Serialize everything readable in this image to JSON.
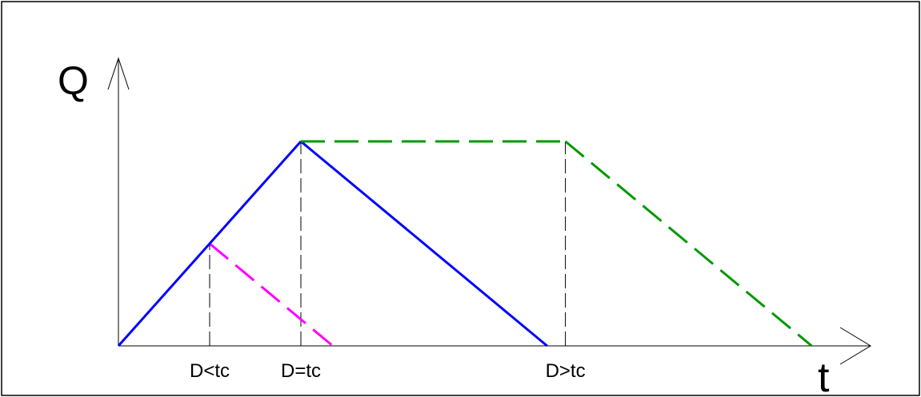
{
  "chart_data": {
    "type": "line",
    "xlabel": "t",
    "ylabel": "Q",
    "x_ticks": [
      {
        "x": 1,
        "label": "D<tc"
      },
      {
        "x": 2,
        "label": "D=tc"
      },
      {
        "x": 4.9,
        "label": "D>tc"
      }
    ],
    "guide_lines": [
      {
        "x": 1,
        "y_top": 0.5
      },
      {
        "x": 2,
        "y_top": 1
      },
      {
        "x": 4.9,
        "y_top": 1
      }
    ],
    "series": [
      {
        "style": "dashed",
        "color": "#ff00ff",
        "points": [
          [
            1,
            0.5
          ],
          [
            2.35,
            0
          ]
        ]
      },
      {
        "style": "solid",
        "color": "#0000ff",
        "points": [
          [
            0,
            0
          ],
          [
            2,
            1
          ],
          [
            4.7,
            0
          ]
        ]
      },
      {
        "style": "dashed",
        "color": "#009900",
        "points": [
          [
            2,
            1
          ],
          [
            4.9,
            1
          ],
          [
            7.6,
            0
          ]
        ]
      }
    ]
  }
}
